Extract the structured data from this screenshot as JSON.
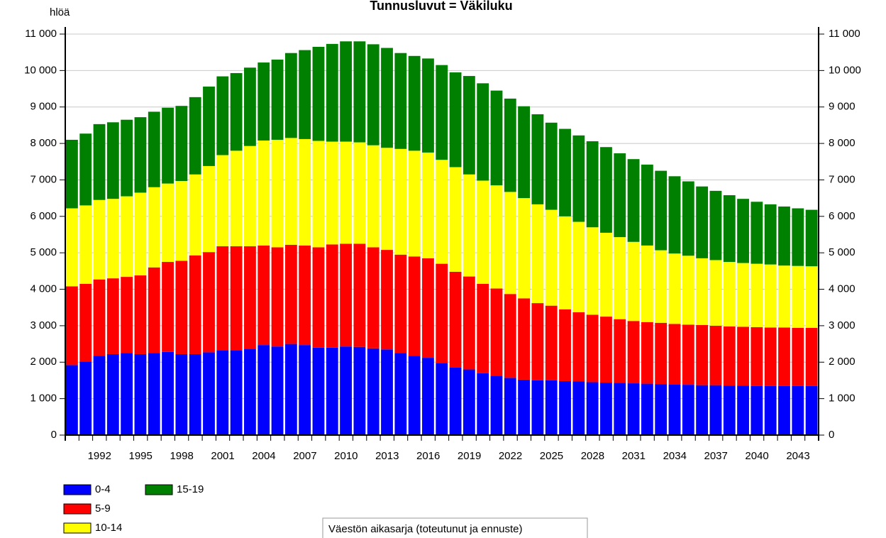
{
  "chart_data": {
    "type": "stacked_bar",
    "title": "Tunnusluvut = Väkiluku",
    "y_label": "hlöä",
    "note": "Väestön aikasarja (toteutunut ja ennuste)",
    "categories": [
      null,
      null,
      "1992",
      null,
      null,
      "1995",
      null,
      null,
      "1998",
      null,
      null,
      "2001",
      null,
      null,
      "2004",
      null,
      null,
      "2007",
      null,
      null,
      "2010",
      null,
      null,
      "2013",
      null,
      null,
      "2016",
      null,
      null,
      "2019",
      null,
      null,
      "2022",
      null,
      null,
      "2025",
      null,
      null,
      "2028",
      null,
      null,
      "2031",
      null,
      null,
      "2034",
      null,
      null,
      "2037",
      null,
      null,
      "2040",
      null,
      null,
      "2043",
      null
    ],
    "series": [
      {
        "name": "0-4",
        "color": "#0000ff",
        "values": [
          1920,
          2020,
          2170,
          2220,
          2250,
          2220,
          2250,
          2280,
          2220,
          2220,
          2270,
          2330,
          2330,
          2370,
          2470,
          2430,
          2500,
          2470,
          2400,
          2400,
          2430,
          2420,
          2380,
          2350,
          2250,
          2170,
          2120,
          1980,
          1850,
          1800,
          1700,
          1630,
          1570,
          1520,
          1500,
          1500,
          1480,
          1470,
          1450,
          1440,
          1430,
          1420,
          1410,
          1400,
          1390,
          1380,
          1370,
          1370,
          1360,
          1360,
          1350,
          1350,
          1350,
          1350,
          1350
        ]
      },
      {
        "name": "5-9",
        "color": "#ff0000",
        "values": [
          2160,
          2130,
          2100,
          2080,
          2090,
          2160,
          2350,
          2470,
          2560,
          2710,
          2750,
          2850,
          2850,
          2810,
          2730,
          2720,
          2720,
          2730,
          2750,
          2830,
          2820,
          2830,
          2770,
          2730,
          2700,
          2730,
          2730,
          2720,
          2630,
          2550,
          2450,
          2390,
          2300,
          2230,
          2120,
          2050,
          1970,
          1900,
          1850,
          1810,
          1750,
          1710,
          1690,
          1680,
          1660,
          1650,
          1650,
          1630,
          1620,
          1610,
          1610,
          1600,
          1600,
          1590,
          1590
        ]
      },
      {
        "name": "10-14",
        "color": "#ffff00",
        "values": [
          2140,
          2150,
          2180,
          2180,
          2210,
          2270,
          2200,
          2150,
          2190,
          2220,
          2360,
          2500,
          2620,
          2750,
          2880,
          2950,
          2930,
          2920,
          2920,
          2820,
          2800,
          2780,
          2800,
          2800,
          2900,
          2900,
          2900,
          2850,
          2870,
          2800,
          2830,
          2830,
          2800,
          2750,
          2710,
          2630,
          2550,
          2480,
          2400,
          2300,
          2250,
          2170,
          2100,
          1990,
          1930,
          1890,
          1830,
          1800,
          1770,
          1750,
          1740,
          1730,
          1700,
          1700,
          1690
        ]
      },
      {
        "name": "15-19",
        "color": "#008000",
        "values": [
          1880,
          1970,
          2080,
          2100,
          2100,
          2070,
          2070,
          2080,
          2060,
          2120,
          2180,
          2160,
          2130,
          2150,
          2140,
          2200,
          2330,
          2440,
          2580,
          2680,
          2750,
          2770,
          2770,
          2740,
          2630,
          2600,
          2580,
          2600,
          2600,
          2700,
          2670,
          2600,
          2560,
          2520,
          2470,
          2390,
          2400,
          2370,
          2360,
          2350,
          2300,
          2270,
          2220,
          2180,
          2120,
          2040,
          1970,
          1900,
          1830,
          1760,
          1700,
          1650,
          1620,
          1580,
          1550
        ]
      }
    ],
    "ylim": [
      0,
      11000
    ],
    "yticks": [
      0,
      {
        "value": 1000,
        "label": "1 000"
      },
      {
        "value": 2000,
        "label": "2 000"
      },
      {
        "value": 3000,
        "label": "3 000"
      },
      {
        "value": 4000,
        "label": "4 000"
      },
      {
        "value": 5000,
        "label": "5 000"
      },
      {
        "value": 6000,
        "label": "6 000"
      },
      {
        "value": 7000,
        "label": "7 000"
      },
      {
        "value": 8000,
        "label": "8 000"
      },
      {
        "value": 9000,
        "label": "9 000"
      },
      {
        "value": 10000,
        "label": "10 000"
      },
      {
        "value": 11000,
        "label": "11 000"
      }
    ],
    "grid": true
  }
}
